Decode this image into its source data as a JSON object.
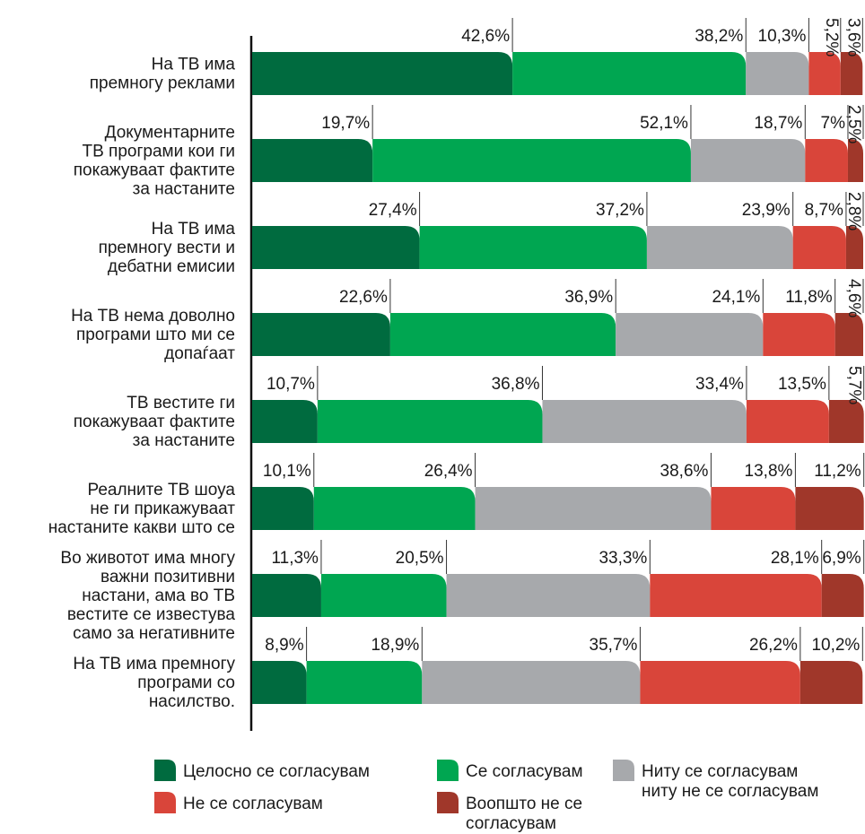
{
  "chart_data": {
    "type": "stacked_bar",
    "categories": [
      "На ТВ има\nпремногу реклами",
      "Документарните\nТВ програми кои ги\nпокажуваат фактите\nза настаните",
      "На ТВ има\nпремногу вести и\nдебатни емисии",
      "На ТВ нема доволно\nпрограми што ми се\nдопаѓаат",
      "ТВ вестите ги\nпокажуваат фактите\nза настаните",
      "Реалните ТВ шоуа\nне ги прикажуваат\nнастаните какви што се",
      "Во животот има многу\nважни позитивни\nнастани, ама во ТВ\nвестите се известува\nсамо за негативните",
      "На ТВ има премногу\nпрограми со\nнасилство."
    ],
    "xlim": [
      0,
      100
    ],
    "series": [
      {
        "name": "Целосно се согласувам",
        "color": "#006b3f",
        "values": [
          42.6,
          19.7,
          27.4,
          22.6,
          10.7,
          10.1,
          11.3,
          8.9
        ],
        "value_labels": [
          "42,6%",
          "19,7%",
          "27,4%",
          "22,6%",
          "10,7%",
          "10,1%",
          "11,3%",
          "8,9%"
        ]
      },
      {
        "name": "Се согласувам",
        "color": "#00a651",
        "values": [
          38.2,
          52.1,
          37.2,
          36.9,
          36.8,
          26.4,
          20.5,
          18.9
        ],
        "value_labels": [
          "38,2%",
          "52,1%",
          "37,2%",
          "36,9%",
          "36,8%",
          "26,4%",
          "20,5%",
          "18,9%"
        ]
      },
      {
        "name": "Ниту се согласувам\nниту не се согласувам",
        "color": "#a7a9ac",
        "values": [
          10.3,
          18.7,
          23.9,
          24.1,
          33.4,
          38.6,
          33.3,
          35.7
        ],
        "value_labels": [
          "10,3%",
          "18,7%",
          "23,9%",
          "24,1%",
          "33,4%",
          "38,6%",
          "33,3%",
          "35,7%"
        ]
      },
      {
        "name": "Не се согласувам",
        "color": "#d9453a",
        "values": [
          5.2,
          7,
          8.7,
          11.8,
          13.5,
          13.8,
          28.1,
          26.2
        ],
        "value_labels": [
          "5,2%",
          "7%",
          "8,7%",
          "11,8%",
          "13,5%",
          "13,8%",
          "28,1%",
          "26,2%"
        ]
      },
      {
        "name": "Воопшто не се\nсогласувам",
        "color": "#a0372a",
        "values": [
          3.6,
          2.5,
          2.8,
          4.6,
          5.7,
          11.2,
          6.9,
          10.2
        ],
        "value_labels": [
          "3,6%",
          "2,5%",
          "2,8%",
          "4,6%",
          "5,7%",
          "11,2%",
          "6,9%",
          "10,2%"
        ]
      }
    ]
  }
}
